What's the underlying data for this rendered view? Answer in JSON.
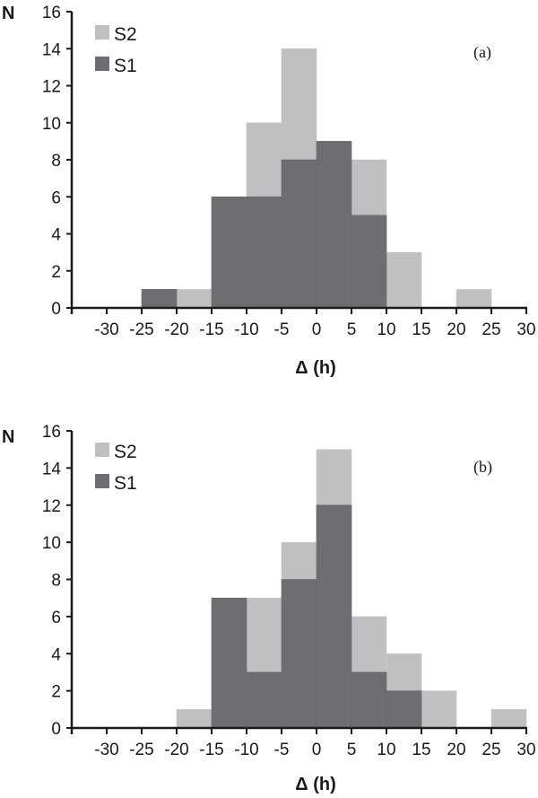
{
  "colors": {
    "S2": "#bfc0c2",
    "S1": "#6d6e71",
    "axis": "#1a1a1a"
  },
  "chart_data": [
    {
      "type": "bar",
      "subtype": "overlapping histogram",
      "panel_label": "(a)",
      "xlabel": "Δ (h)",
      "ylabel": "N",
      "ylim": [
        0,
        16
      ],
      "yticks": [
        0,
        2,
        4,
        6,
        8,
        10,
        12,
        14,
        16
      ],
      "xlim": [
        -35,
        30
      ],
      "xticks": [
        -30,
        -25,
        -20,
        -15,
        -10,
        -5,
        0,
        5,
        10,
        15,
        20,
        25,
        30
      ],
      "legend": [
        "S2",
        "S1"
      ],
      "legend_position": "upper left",
      "grid": false,
      "bin_edges": [
        -25,
        -20,
        -15,
        -10,
        -5,
        0,
        5,
        10,
        15,
        20,
        25
      ],
      "categories": [
        "-25 to -20",
        "-20 to -15",
        "-15 to -10",
        "-10 to -5",
        "-5 to 0",
        "0 to 5",
        "5 to 10",
        "10 to 15",
        "15 to 20",
        "20 to 25"
      ],
      "series": [
        {
          "name": "S2",
          "values": [
            0,
            1,
            0,
            10,
            14,
            0,
            8,
            3,
            0,
            1
          ]
        },
        {
          "name": "S1",
          "values": [
            1,
            0,
            6,
            6,
            8,
            9,
            5,
            0,
            0,
            0
          ]
        }
      ]
    },
    {
      "type": "bar",
      "subtype": "overlapping histogram",
      "panel_label": "(b)",
      "xlabel": "Δ (h)",
      "ylabel": "N",
      "ylim": [
        0,
        16
      ],
      "yticks": [
        0,
        2,
        4,
        6,
        8,
        10,
        12,
        14,
        16
      ],
      "xlim": [
        -35,
        30
      ],
      "xticks": [
        -30,
        -25,
        -20,
        -15,
        -10,
        -5,
        0,
        5,
        10,
        15,
        20,
        25,
        30
      ],
      "legend": [
        "S2",
        "S1"
      ],
      "legend_position": "upper left",
      "grid": false,
      "bin_edges": [
        -20,
        -15,
        -10,
        -5,
        0,
        5,
        10,
        15,
        20,
        25,
        30
      ],
      "categories": [
        "-20 to -15",
        "-15 to -10",
        "-10 to -5",
        "-5 to 0",
        "0 to 5",
        "5 to 10",
        "10 to 15",
        "15 to 20",
        "20 to 25",
        "25 to 30"
      ],
      "series": [
        {
          "name": "S2",
          "values": [
            1,
            0,
            7,
            10,
            15,
            6,
            4,
            2,
            0,
            1
          ]
        },
        {
          "name": "S1",
          "values": [
            0,
            7,
            3,
            8,
            12,
            3,
            2,
            0,
            0,
            0
          ]
        }
      ]
    }
  ],
  "panels": [
    {
      "tag": "(a)",
      "ylabel": "N",
      "xlabel": "Δ (h)",
      "legend": [
        "S2",
        "S1"
      ]
    },
    {
      "tag": "(b)",
      "ylabel": "N",
      "xlabel": "Δ (h)",
      "legend": [
        "S2",
        "S1"
      ]
    }
  ]
}
